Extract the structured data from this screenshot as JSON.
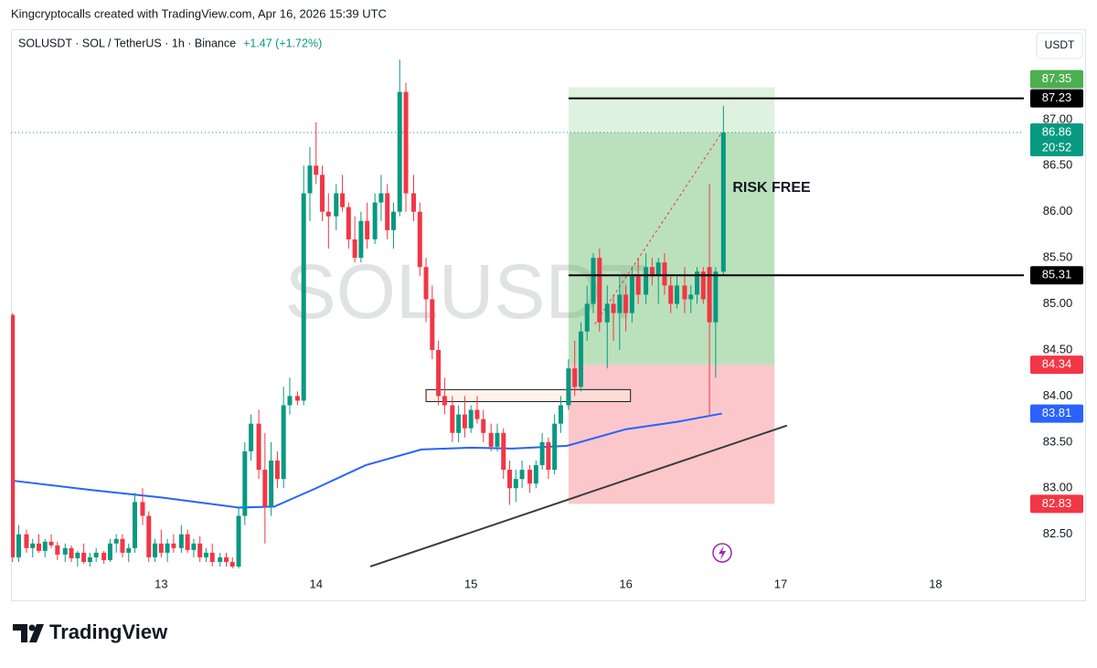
{
  "chart_data": {
    "type": "candlestick",
    "header": "Kingcryptocalls created with TradingView.com, Apr 16, 2026 15:39 UTC",
    "symbol": "SOLUSDT · SOL / TetherUS · 1h · Binance",
    "change": "+1.47 (+1.72%)",
    "watermark": "SOLUSDT",
    "currency": "USDT",
    "annotation": "RISK FREE",
    "countdown": "20:52",
    "footer": "TradingView",
    "up_color": "#089981",
    "down_color": "#f23645",
    "grid": false,
    "xlim": [
      12.03,
      18.57
    ],
    "ylim": [
      82.13,
      87.98
    ],
    "xticks": [
      13,
      14,
      15,
      16,
      17,
      18
    ],
    "yticks": [
      {
        "value": 82.5,
        "label": "82.50"
      },
      {
        "value": 83,
        "label": "83.00"
      },
      {
        "value": 83.5,
        "label": "83.50"
      },
      {
        "value": 84,
        "label": "84.00"
      },
      {
        "value": 84.5,
        "label": "84.50"
      },
      {
        "value": 85,
        "label": "85.00"
      },
      {
        "value": 85.5,
        "label": "85.50"
      },
      {
        "value": 86,
        "label": "86.00"
      },
      {
        "value": 86.5,
        "label": "86.50"
      },
      {
        "value": 87,
        "label": "87.00"
      }
    ],
    "x": [
      12.04,
      12.08,
      12.13,
      12.17,
      12.21,
      12.25,
      12.29,
      12.33,
      12.38,
      12.42,
      12.46,
      12.5,
      12.54,
      12.58,
      12.63,
      12.67,
      12.71,
      12.75,
      12.79,
      12.83,
      12.88,
      12.92,
      12.96,
      13.0,
      13.04,
      13.08,
      13.13,
      13.17,
      13.21,
      13.25,
      13.29,
      13.33,
      13.38,
      13.42,
      13.46,
      13.5,
      13.54,
      13.58,
      13.63,
      13.67,
      13.71,
      13.75,
      13.79,
      13.83,
      13.88,
      13.92,
      13.96,
      14.0,
      14.04,
      14.08,
      14.13,
      14.17,
      14.21,
      14.25,
      14.29,
      14.33,
      14.38,
      14.42,
      14.46,
      14.5,
      14.54,
      14.58,
      14.63,
      14.67,
      14.71,
      14.75,
      14.79,
      14.83,
      14.88,
      14.92,
      14.96,
      15.0,
      15.04,
      15.08,
      15.13,
      15.17,
      15.21,
      15.25,
      15.29,
      15.33,
      15.38,
      15.42,
      15.46,
      15.5,
      15.54,
      15.58,
      15.63,
      15.67,
      15.71,
      15.75,
      15.79,
      15.83,
      15.88,
      15.92,
      15.96,
      16.0,
      16.04,
      16.08,
      16.13,
      16.17,
      16.21,
      16.25,
      16.29,
      16.33,
      16.38,
      16.42,
      16.46,
      16.5,
      16.54,
      16.58,
      16.63
    ],
    "ohlc": [
      [
        84.88,
        84.9,
        82.2,
        82.25
      ],
      [
        82.25,
        82.6,
        82.2,
        82.5
      ],
      [
        82.5,
        82.55,
        82.3,
        82.35
      ],
      [
        82.35,
        82.45,
        82.25,
        82.4
      ],
      [
        82.4,
        82.5,
        82.3,
        82.32
      ],
      [
        82.32,
        82.45,
        82.25,
        82.42
      ],
      [
        82.42,
        82.5,
        82.35,
        82.38
      ],
      [
        82.38,
        82.42,
        82.22,
        82.28
      ],
      [
        82.28,
        82.4,
        82.2,
        82.35
      ],
      [
        82.35,
        82.38,
        82.2,
        82.24
      ],
      [
        82.24,
        82.32,
        82.15,
        82.3
      ],
      [
        82.3,
        82.4,
        82.18,
        82.2
      ],
      [
        82.2,
        82.3,
        82.15,
        82.25
      ],
      [
        82.25,
        82.35,
        82.2,
        82.3
      ],
      [
        82.3,
        82.32,
        82.18,
        82.22
      ],
      [
        82.22,
        82.45,
        82.2,
        82.4
      ],
      [
        82.4,
        82.5,
        82.3,
        82.45
      ],
      [
        82.45,
        82.5,
        82.25,
        82.3
      ],
      [
        82.3,
        82.4,
        82.2,
        82.35
      ],
      [
        82.35,
        82.95,
        82.3,
        82.85
      ],
      [
        82.85,
        83.0,
        82.6,
        82.7
      ],
      [
        82.7,
        82.75,
        82.2,
        82.25
      ],
      [
        82.25,
        82.45,
        82.2,
        82.4
      ],
      [
        82.4,
        82.55,
        82.25,
        82.3
      ],
      [
        82.3,
        82.45,
        82.2,
        82.4
      ],
      [
        82.4,
        82.5,
        82.3,
        82.35
      ],
      [
        82.35,
        82.6,
        82.3,
        82.5
      ],
      [
        82.5,
        82.55,
        82.3,
        82.33
      ],
      [
        82.33,
        82.45,
        82.25,
        82.4
      ],
      [
        82.4,
        82.48,
        82.2,
        82.25
      ],
      [
        82.25,
        82.35,
        82.2,
        82.3
      ],
      [
        82.3,
        82.4,
        82.15,
        82.2
      ],
      [
        82.2,
        82.3,
        82.15,
        82.25
      ],
      [
        82.25,
        82.3,
        82.15,
        82.2
      ],
      [
        82.2,
        82.25,
        82.1,
        82.15
      ],
      [
        82.15,
        82.8,
        82.12,
        82.7
      ],
      [
        82.7,
        83.5,
        82.6,
        83.4
      ],
      [
        83.4,
        83.8,
        83.3,
        83.7
      ],
      [
        83.7,
        83.85,
        83.1,
        83.2
      ],
      [
        83.2,
        83.6,
        82.4,
        82.8
      ],
      [
        82.8,
        83.5,
        82.7,
        83.3
      ],
      [
        83.3,
        83.4,
        83.0,
        83.1
      ],
      [
        83.1,
        84.1,
        83.0,
        83.9
      ],
      [
        83.9,
        84.2,
        83.8,
        84.0
      ],
      [
        84.0,
        84.05,
        83.9,
        83.95
      ],
      [
        83.95,
        86.5,
        83.9,
        86.2
      ],
      [
        86.2,
        86.7,
        85.9,
        86.5
      ],
      [
        86.5,
        86.97,
        86.3,
        86.4
      ],
      [
        86.4,
        86.5,
        85.9,
        86.0
      ],
      [
        86.0,
        86.2,
        85.6,
        85.95
      ],
      [
        85.95,
        86.3,
        85.8,
        86.2
      ],
      [
        86.2,
        86.4,
        86.0,
        86.05
      ],
      [
        86.05,
        86.1,
        85.6,
        85.7
      ],
      [
        85.7,
        85.95,
        85.45,
        85.5
      ],
      [
        85.5,
        86.0,
        85.45,
        85.9
      ],
      [
        85.9,
        86.1,
        85.6,
        85.7
      ],
      [
        85.7,
        86.2,
        85.65,
        86.1
      ],
      [
        86.1,
        86.4,
        85.9,
        86.2
      ],
      [
        86.2,
        86.3,
        85.7,
        85.8
      ],
      [
        85.8,
        86.1,
        85.6,
        86.0
      ],
      [
        86.0,
        87.65,
        85.95,
        87.3
      ],
      [
        87.3,
        87.4,
        86.0,
        86.2
      ],
      [
        86.2,
        86.4,
        85.9,
        86.0
      ],
      [
        86.0,
        86.1,
        85.3,
        85.4
      ],
      [
        85.4,
        85.5,
        84.8,
        85.05
      ],
      [
        85.05,
        85.2,
        84.4,
        84.5
      ],
      [
        84.5,
        84.6,
        83.9,
        84.0
      ],
      [
        84.0,
        84.2,
        83.8,
        83.9
      ],
      [
        83.9,
        84.0,
        83.5,
        83.6
      ],
      [
        83.6,
        83.9,
        83.5,
        83.8
      ],
      [
        83.8,
        84.0,
        83.55,
        83.65
      ],
      [
        83.65,
        83.9,
        83.6,
        83.85
      ],
      [
        83.85,
        84.0,
        83.7,
        83.75
      ],
      [
        83.75,
        83.85,
        83.5,
        83.6
      ],
      [
        83.6,
        83.7,
        83.4,
        83.45
      ],
      [
        83.45,
        83.7,
        83.4,
        83.6
      ],
      [
        83.6,
        83.65,
        83.1,
        83.2
      ],
      [
        83.2,
        83.3,
        82.82,
        83.0
      ],
      [
        83.0,
        83.2,
        82.85,
        83.1
      ],
      [
        83.1,
        83.3,
        83.0,
        83.2
      ],
      [
        83.2,
        83.25,
        82.95,
        83.05
      ],
      [
        83.05,
        83.3,
        83.0,
        83.25
      ],
      [
        83.25,
        83.6,
        83.2,
        83.5
      ],
      [
        83.5,
        83.55,
        83.1,
        83.2
      ],
      [
        83.2,
        83.8,
        83.15,
        83.7
      ],
      [
        83.7,
        84.0,
        83.6,
        83.9
      ],
      [
        83.9,
        84.4,
        83.85,
        84.3
      ],
      [
        84.3,
        84.6,
        84.0,
        84.1
      ],
      [
        84.1,
        84.8,
        84.05,
        84.7
      ],
      [
        84.7,
        85.2,
        84.6,
        85.0
      ],
      [
        85.0,
        85.55,
        84.9,
        85.5
      ],
      [
        85.5,
        85.6,
        84.7,
        84.8
      ],
      [
        84.8,
        85.2,
        84.3,
        85.0
      ],
      [
        85.0,
        85.1,
        84.6,
        84.9
      ],
      [
        84.9,
        85.3,
        84.5,
        85.1
      ],
      [
        85.1,
        85.2,
        84.7,
        84.9
      ],
      [
        84.9,
        85.4,
        84.8,
        85.3
      ],
      [
        85.3,
        85.5,
        85.0,
        85.1
      ],
      [
        85.1,
        85.55,
        85.0,
        85.4
      ],
      [
        85.4,
        85.5,
        85.2,
        85.3
      ],
      [
        85.3,
        85.5,
        85.0,
        85.45
      ],
      [
        85.45,
        85.55,
        85.1,
        85.2
      ],
      [
        85.2,
        85.3,
        84.9,
        85.0
      ],
      [
        85.0,
        85.3,
        84.95,
        85.2
      ],
      [
        85.2,
        85.4,
        84.9,
        85.05
      ],
      [
        85.05,
        85.2,
        84.9,
        85.1
      ],
      [
        85.1,
        85.4,
        85.0,
        85.35
      ],
      [
        85.35,
        85.4,
        85.0,
        85.05
      ],
      [
        85.4,
        86.3,
        83.8,
        84.8
      ],
      [
        84.8,
        85.4,
        84.2,
        85.35
      ],
      [
        85.35,
        87.15,
        85.3,
        86.86
      ]
    ],
    "ma": {
      "color": "#2962ff",
      "x": [
        12.05,
        12.55,
        13.0,
        13.5,
        13.73,
        14.0,
        14.32,
        14.68,
        15.0,
        15.27,
        15.62,
        16.0,
        16.33,
        16.62
      ],
      "values": [
        83.08,
        82.98,
        82.9,
        82.79,
        82.8,
        83.0,
        83.25,
        83.42,
        83.44,
        83.43,
        83.46,
        83.64,
        83.72,
        83.81
      ]
    },
    "trend": {
      "x": [
        14.35,
        17.04
      ],
      "values": [
        82.15,
        83.68
      ]
    },
    "zone": {
      "x": [
        14.71,
        16.03
      ],
      "values": [
        84.07,
        83.94
      ]
    },
    "projection": {
      "x": [
        15.8,
        16.62
      ],
      "values": [
        84.78,
        86.86
      ]
    },
    "position": {
      "x": [
        15.63,
        16.96
      ],
      "target": 87.35,
      "entry": 84.34,
      "stop": 82.83
    },
    "levels": [
      87.23,
      85.31
    ],
    "current_price": 86.86
  }
}
